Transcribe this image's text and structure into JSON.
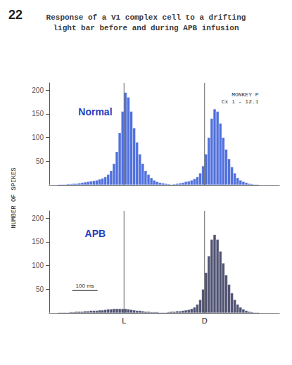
{
  "chart_data": [
    {
      "type": "bar",
      "title": "Response of a V1 complex cell to a drifting\nlight bar before and during APB infusion",
      "ylabel": "NUMBER OF SPIKES",
      "annotations": [
        {
          "text": "22"
        },
        {
          "text": "Normal"
        },
        {
          "text": "MONKEY P\nCx 1 - 12.1"
        }
      ],
      "categories": [
        null,
        null,
        null,
        null,
        null,
        null,
        null,
        null,
        null,
        null,
        null,
        null,
        null,
        null,
        null,
        null,
        null,
        null,
        null,
        null,
        null,
        null,
        null,
        null,
        null,
        null,
        null,
        null,
        null,
        null,
        null,
        null,
        null,
        null,
        null,
        null,
        null,
        null,
        null,
        null,
        null,
        null,
        null,
        null,
        null,
        null,
        null,
        null,
        null,
        null,
        null,
        null,
        null,
        null,
        null,
        null,
        null,
        null,
        null,
        null,
        null,
        null,
        null,
        null,
        null,
        null,
        null,
        null,
        null,
        null,
        null,
        null,
        null,
        null,
        null,
        null,
        null,
        null,
        null,
        null
      ],
      "values": [
        0,
        0,
        0,
        1,
        1,
        1,
        2,
        2,
        3,
        3,
        4,
        5,
        6,
        7,
        8,
        9,
        10,
        12,
        14,
        17,
        22,
        30,
        45,
        70,
        110,
        155,
        195,
        185,
        155,
        120,
        90,
        65,
        45,
        30,
        22,
        15,
        10,
        7,
        5,
        4,
        3,
        2,
        1,
        2,
        3,
        4,
        5,
        7,
        8,
        10,
        13,
        17,
        25,
        40,
        65,
        100,
        140,
        160,
        155,
        130,
        100,
        75,
        55,
        38,
        25,
        15,
        10,
        7,
        5,
        3,
        2,
        1,
        1,
        0,
        0,
        0,
        0,
        0,
        0,
        0
      ],
      "ylim": [
        0,
        215
      ],
      "yticks": [
        50,
        100,
        150,
        200
      ],
      "vlines": [
        {
          "x": 26
        },
        {
          "x": 54
        }
      ],
      "grid": false,
      "tick_labels": "y"
    },
    {
      "type": "bar",
      "annotations": [
        {
          "text": "APB"
        },
        {
          "text": "100 ms"
        }
      ],
      "categories": [
        null,
        null,
        null,
        null,
        null,
        null,
        null,
        null,
        null,
        null,
        null,
        null,
        null,
        null,
        null,
        null,
        null,
        null,
        null,
        null,
        null,
        null,
        null,
        null,
        null,
        null,
        null,
        null,
        null,
        null,
        null,
        null,
        null,
        null,
        null,
        null,
        null,
        null,
        null,
        null,
        null,
        null,
        null,
        null,
        null,
        null,
        null,
        null,
        null,
        null,
        null,
        null,
        null,
        null,
        null,
        null,
        null,
        null,
        null,
        null,
        null,
        null,
        null,
        null,
        null,
        null,
        null,
        null,
        null,
        null,
        null,
        null,
        null,
        null,
        null,
        null,
        null,
        null,
        null,
        null
      ],
      "values": [
        0,
        0,
        0,
        1,
        1,
        1,
        1,
        2,
        2,
        3,
        3,
        3,
        4,
        4,
        5,
        5,
        5,
        6,
        6,
        7,
        8,
        8,
        9,
        9,
        9,
        9,
        9,
        8,
        7,
        6,
        5,
        5,
        4,
        3,
        3,
        2,
        2,
        2,
        1,
        1,
        1,
        2,
        3,
        3,
        4,
        4,
        5,
        6,
        7,
        9,
        12,
        18,
        28,
        50,
        85,
        120,
        155,
        165,
        155,
        130,
        105,
        80,
        60,
        42,
        28,
        18,
        12,
        8,
        5,
        3,
        2,
        1,
        1,
        0,
        0,
        0,
        0,
        0,
        0,
        0
      ],
      "ylim": [
        0,
        215
      ],
      "yticks": [
        50,
        100,
        150,
        200
      ],
      "vlines": [
        {
          "x": 26,
          "label": "L"
        },
        {
          "x": 54,
          "label": "D"
        }
      ],
      "grid": false,
      "tick_labels": "y"
    }
  ]
}
